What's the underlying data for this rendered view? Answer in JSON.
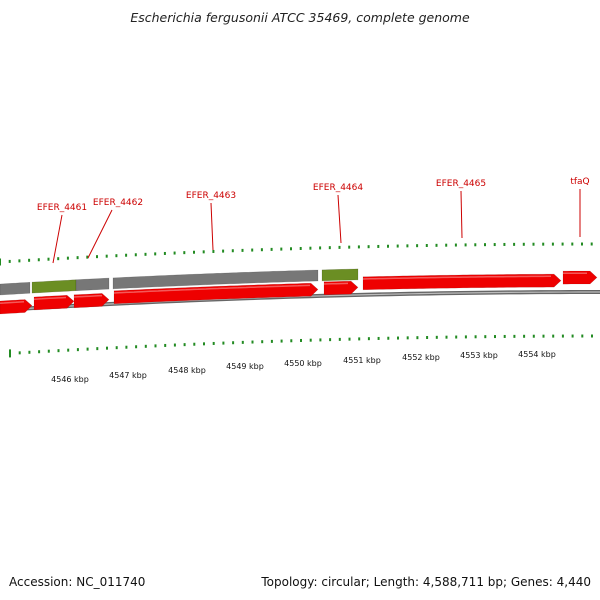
{
  "title": "Escherichia fergusonii ATCC 35469, complete genome",
  "footer": {
    "accession": "Accession: NC_011740",
    "summary": "Topology: circular; Length: 4,588,711 bp; Genes: 4,440"
  },
  "colors": {
    "gene_red": "#ee0000",
    "gene_gray": "#777777",
    "gene_green": "#6b8e23",
    "tick_green": "#228b22",
    "label_red": "#cc0000",
    "backbone": "#888888"
  },
  "gene_labels": [
    "EFER_4461",
    "EFER_4462",
    "EFER_4463",
    "EFER_4464",
    "EFER_4465",
    "tfaQ"
  ],
  "kbp_labels": [
    "4546 kbp",
    "4547 kbp",
    "4548 kbp",
    "4549 kbp",
    "4550 kbp",
    "4551 kbp",
    "4552 kbp",
    "4553 kbp",
    "4554 kbp"
  ]
}
